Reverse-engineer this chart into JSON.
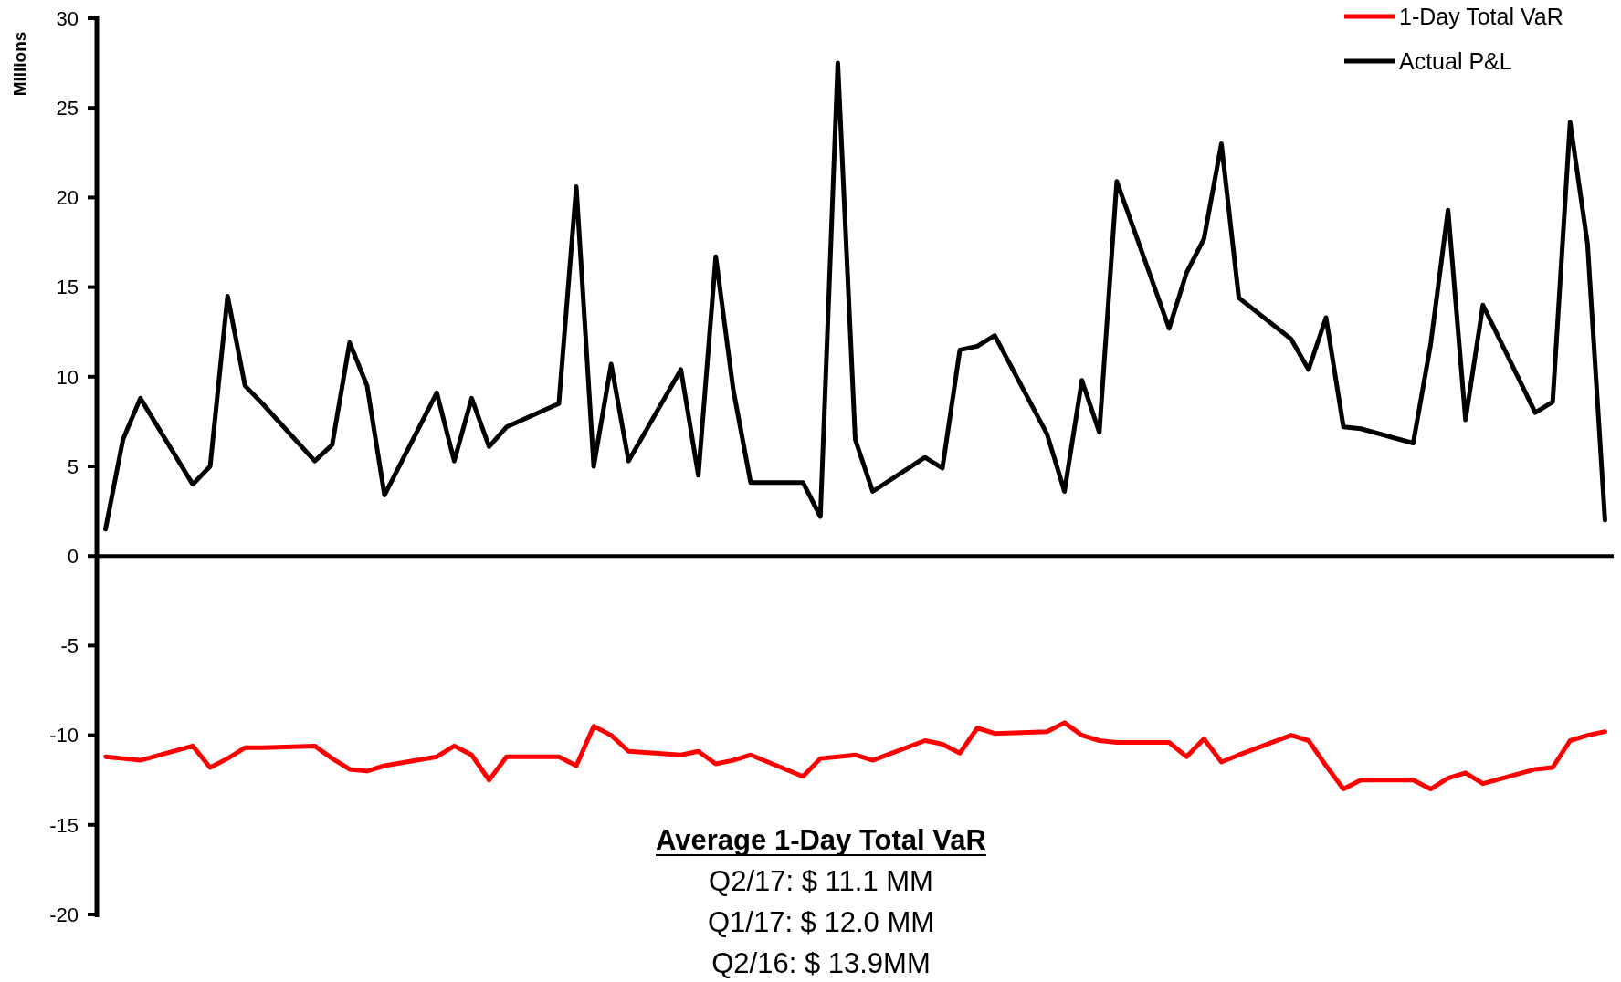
{
  "chart_data": {
    "type": "line",
    "ylabel": "Millions",
    "categories": [
      null,
      null,
      null,
      null,
      null,
      null,
      null,
      null,
      null,
      null,
      null,
      null,
      null,
      null,
      null,
      null,
      null,
      null,
      null,
      null,
      null,
      null,
      null,
      null,
      null,
      null,
      null,
      null,
      null,
      null,
      null,
      null,
      null,
      null,
      null,
      null,
      null,
      null,
      null,
      null,
      null,
      null,
      null,
      null,
      null,
      null,
      null,
      null,
      null,
      null,
      null,
      null,
      null,
      null,
      null,
      null,
      null,
      null,
      null,
      null,
      null,
      null,
      null,
      null,
      null,
      null,
      null,
      null,
      null,
      null,
      null,
      null,
      null,
      null,
      null,
      null,
      null,
      null,
      null,
      null,
      null,
      null,
      null,
      null,
      null,
      null,
      null
    ],
    "ylim": [
      -20,
      30
    ],
    "yticks": [
      -20,
      -15,
      -10,
      -5,
      0,
      5,
      10,
      15,
      20,
      25,
      30
    ],
    "tick_labels": "y",
    "legend": "top right",
    "line_style": "solid",
    "series": [
      {
        "name": "1-Day Total VaR",
        "color": "#ff0000",
        "values": [
          -11.2,
          -11.3,
          -11.4,
          null,
          null,
          -10.6,
          -11.8,
          -11.3,
          -10.7,
          -10.7,
          null,
          null,
          -10.6,
          -11.3,
          -11.9,
          -12.0,
          -11.7,
          null,
          null,
          -11.2,
          -10.6,
          -11.1,
          -12.5,
          -11.2,
          null,
          null,
          -11.2,
          -11.7,
          -9.5,
          -10.0,
          -10.9,
          null,
          null,
          -11.1,
          -10.9,
          -11.6,
          -11.4,
          -11.1,
          null,
          null,
          -12.3,
          -11.3,
          -11.2,
          -11.1,
          -11.4,
          null,
          null,
          -10.3,
          -10.5,
          -11.0,
          -9.6,
          -9.9,
          null,
          null,
          -9.8,
          -9.3,
          -10.0,
          -10.3,
          -10.4,
          null,
          null,
          -10.4,
          -11.2,
          -10.2,
          -11.5,
          -11.1,
          null,
          null,
          -10.0,
          -10.3,
          -11.7,
          -13.0,
          -12.5,
          null,
          null,
          -12.5,
          -13.0,
          -12.4,
          -12.1,
          -12.7,
          null,
          null,
          -11.9,
          -11.8,
          -10.3,
          -10.0,
          -9.8
        ]
      },
      {
        "name": "Actual P&L",
        "color": "#000000",
        "values": [
          1.5,
          6.5,
          8.8,
          null,
          null,
          4.0,
          5.0,
          14.5,
          9.5,
          8.5,
          null,
          null,
          5.3,
          6.2,
          11.9,
          9.5,
          3.4,
          null,
          null,
          9.1,
          5.3,
          8.8,
          6.1,
          7.2,
          null,
          null,
          8.5,
          20.6,
          5.0,
          10.7,
          5.3,
          null,
          null,
          10.4,
          4.5,
          16.7,
          9.3,
          4.1,
          null,
          null,
          4.1,
          2.2,
          27.5,
          6.5,
          3.6,
          null,
          null,
          5.5,
          4.9,
          11.5,
          11.7,
          12.3,
          null,
          null,
          6.8,
          3.6,
          9.8,
          6.9,
          20.9,
          null,
          null,
          12.7,
          15.8,
          17.7,
          23.0,
          14.4,
          null,
          null,
          12.1,
          10.4,
          13.3,
          7.2,
          7.1,
          null,
          null,
          6.3,
          11.8,
          19.3,
          7.6,
          14.0,
          null,
          null,
          8.0,
          8.6,
          24.2,
          17.4,
          2.0
        ]
      }
    ],
    "annotations": [
      "Average 1-Day Total VaR",
      "Q2/17: $ 11.1  MM",
      "Q1/17: $ 12.0 MM",
      "Q2/16: $ 13.9MM"
    ]
  }
}
